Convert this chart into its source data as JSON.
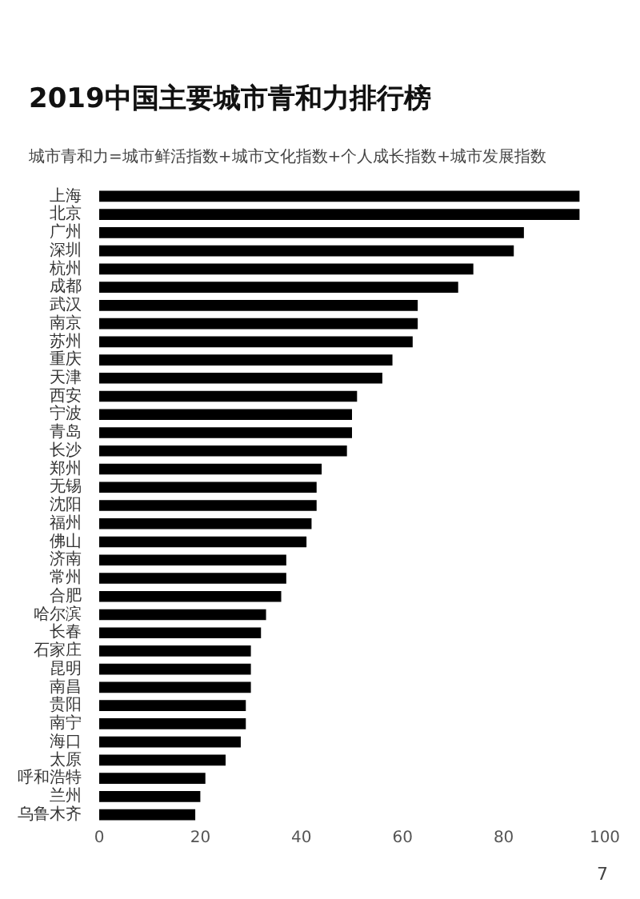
{
  "chart_data": {
    "type": "bar",
    "orientation": "horizontal",
    "title": "2019中国主要城市青和力排行榜",
    "subtitle": "城市青和力=城市鲜活指数+城市文化指数+个人成长指数+城市发展指数",
    "categories": [
      "上海",
      "北京",
      "广州",
      "深圳",
      "杭州",
      "成都",
      "武汉",
      "南京",
      "苏州",
      "重庆",
      "天津",
      "西安",
      "宁波",
      "青岛",
      "长沙",
      "郑州",
      "无锡",
      "沈阳",
      "福州",
      "佛山",
      "济南",
      "常州",
      "合肥",
      "哈尔滨",
      "长春",
      "石家庄",
      "昆明",
      "南昌",
      "贵阳",
      "南宁",
      "海口",
      "太原",
      "呼和浩特",
      "兰州",
      "乌鲁木齐"
    ],
    "values": [
      95,
      95,
      84,
      82,
      74,
      71,
      63,
      63,
      62,
      58,
      56,
      51,
      50,
      50,
      49,
      44,
      43,
      43,
      42,
      41,
      37,
      37,
      36,
      33,
      32,
      30,
      30,
      30,
      29,
      29,
      28,
      25,
      21,
      20,
      19
    ],
    "color": "#000000",
    "xlim": [
      0,
      100
    ],
    "xticks": [
      0,
      20,
      40,
      60,
      80,
      100
    ],
    "grid": false,
    "annotations": [
      "7"
    ]
  }
}
